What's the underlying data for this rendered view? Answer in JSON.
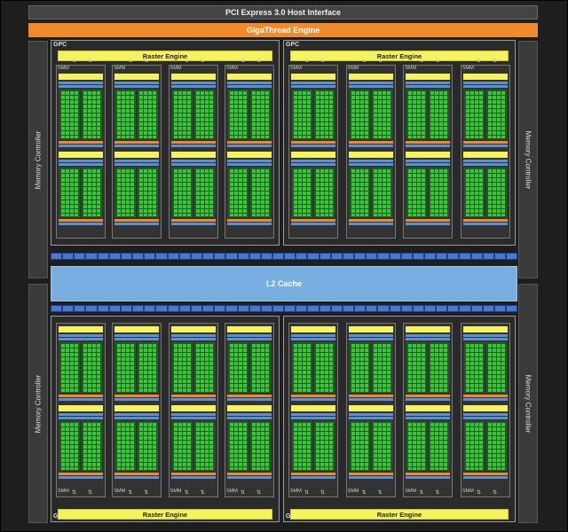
{
  "diagram": {
    "host_interface": "PCI Express 3.0 Host Interface",
    "thread_engine": "GigaThread Engine",
    "l2_cache": "L2 Cache",
    "memory_controller": "Memory Controller",
    "gpc_label": "GPC",
    "raster_engine": "Raster Engine",
    "smm_label": "SMM",
    "colors": {
      "background": "#1e1e1e",
      "gigathread": "#f08a2a",
      "raster": "#f4f45a",
      "cuda_core": "#39c63a",
      "l2": "#79aee0",
      "crossbar": "#4a78d0"
    }
  }
}
